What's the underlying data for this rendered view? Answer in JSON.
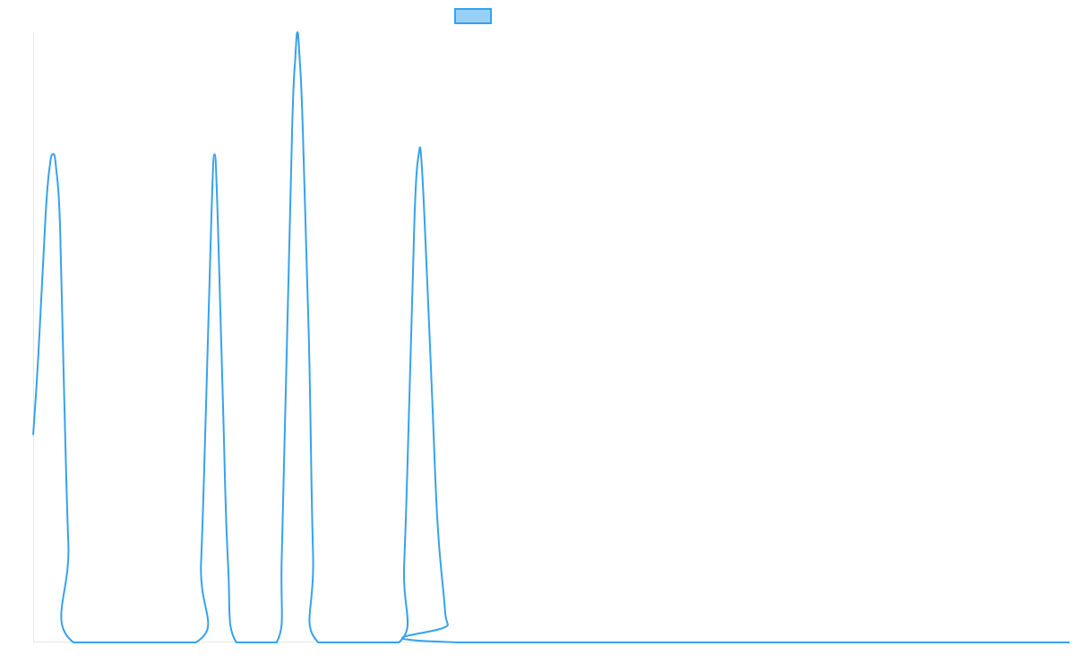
{
  "colors": {
    "line": "#36a2eb",
    "legend_fill": "#9ad0f5",
    "axis": "#e6e6e6",
    "background": "#ffffff"
  },
  "chart_data": {
    "type": "line",
    "title": "",
    "xlabel": "",
    "ylabel": "",
    "grid": false,
    "legend": {
      "placement": "top-center",
      "entries": [
        {
          "label": ""
        }
      ]
    },
    "xlim": [
      0,
      1
    ],
    "ylim": [
      0,
      1
    ],
    "series": [
      {
        "values": [
          [
            0.0,
            0.34
          ],
          [
            0.005,
            0.47
          ],
          [
            0.012,
            0.7
          ],
          [
            0.016,
            0.78
          ],
          [
            0.019,
            0.8
          ],
          [
            0.022,
            0.78
          ],
          [
            0.026,
            0.68
          ],
          [
            0.03,
            0.4
          ],
          [
            0.034,
            0.16
          ],
          [
            0.039,
            0.0
          ],
          [
            0.157,
            0.0
          ],
          [
            0.162,
            0.13
          ],
          [
            0.167,
            0.4
          ],
          [
            0.172,
            0.7
          ],
          [
            0.175,
            0.8
          ],
          [
            0.178,
            0.7
          ],
          [
            0.183,
            0.4
          ],
          [
            0.188,
            0.13
          ],
          [
            0.196,
            0.0
          ],
          [
            0.235,
            0.0
          ],
          [
            0.24,
            0.15
          ],
          [
            0.245,
            0.5
          ],
          [
            0.25,
            0.85
          ],
          [
            0.253,
            0.96
          ],
          [
            0.255,
            1.0
          ],
          [
            0.257,
            0.96
          ],
          [
            0.26,
            0.85
          ],
          [
            0.266,
            0.5
          ],
          [
            0.27,
            0.15
          ],
          [
            0.275,
            0.0
          ],
          [
            0.353,
            0.0
          ],
          [
            0.358,
            0.13
          ],
          [
            0.363,
            0.4
          ],
          [
            0.368,
            0.7
          ],
          [
            0.372,
            0.8
          ],
          [
            0.375,
            0.78
          ],
          [
            0.38,
            0.6
          ],
          [
            0.385,
            0.4
          ],
          [
            0.39,
            0.2
          ],
          [
            0.396,
            0.08
          ],
          [
            0.4,
            0.03
          ],
          [
            0.412,
            0.0
          ],
          [
            1.0,
            0.0
          ]
        ]
      }
    ]
  }
}
